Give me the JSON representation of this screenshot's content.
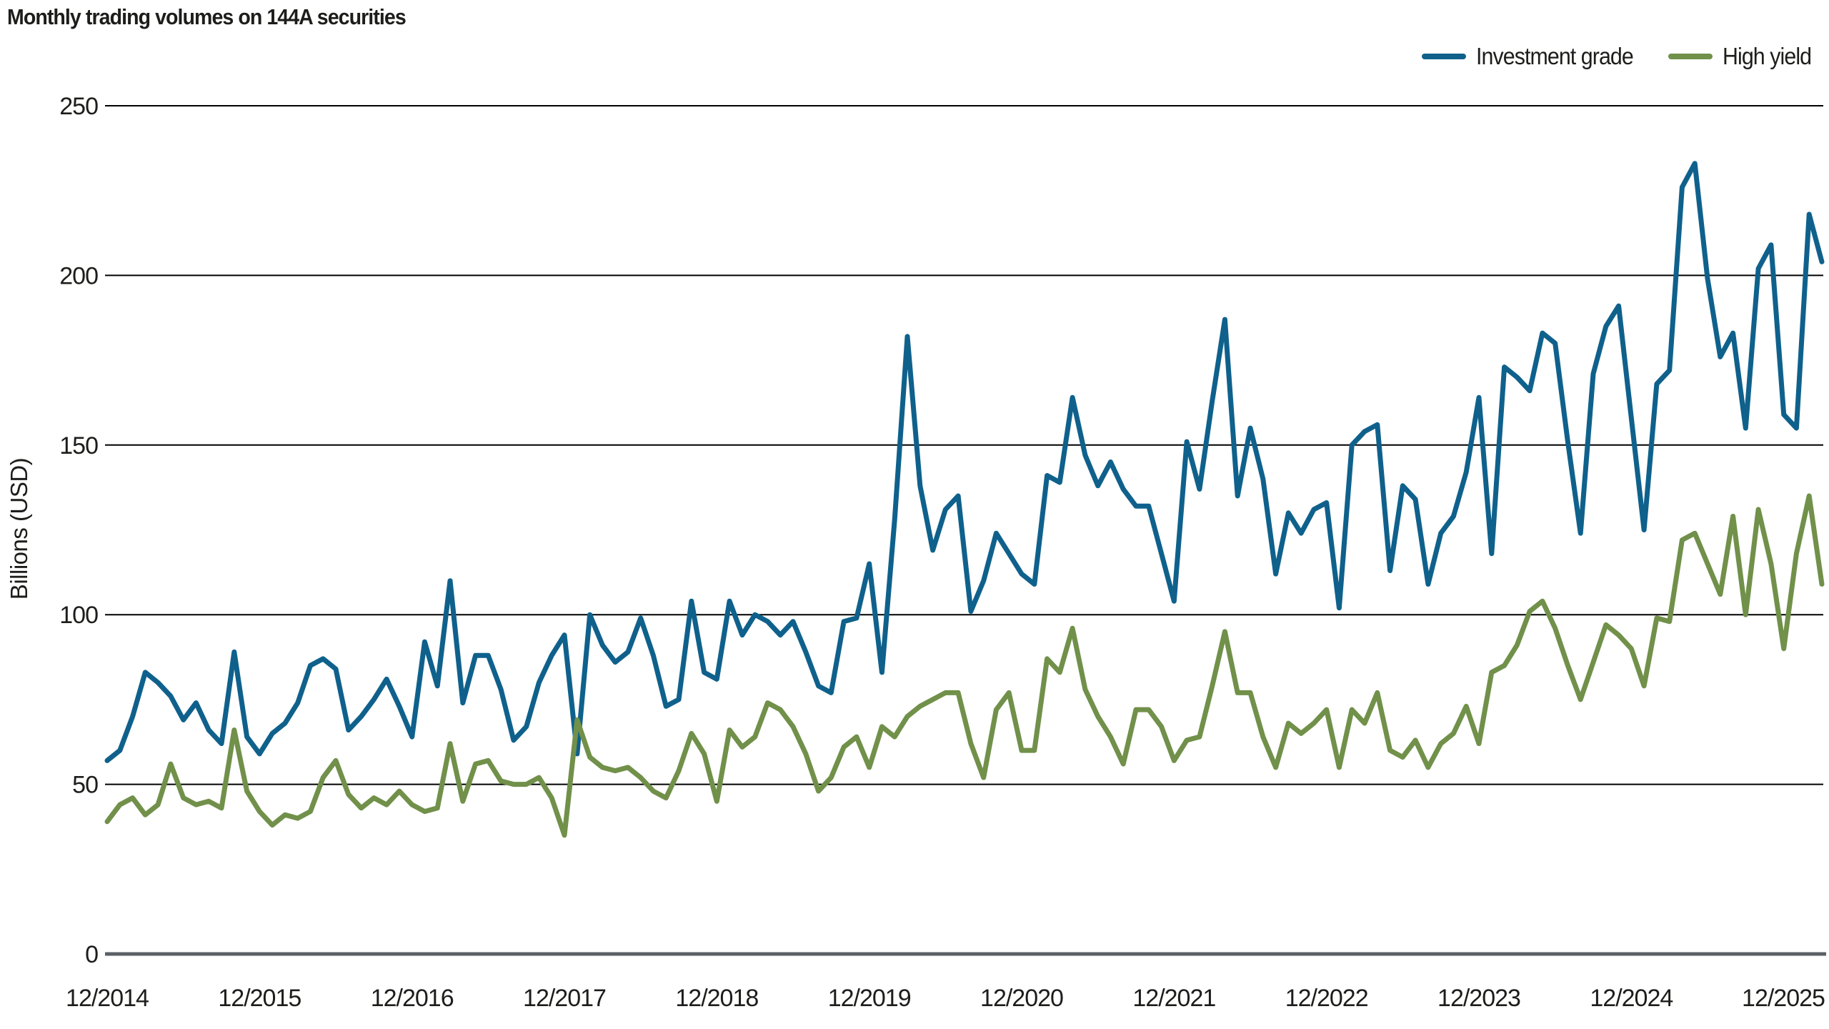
{
  "chart_data": {
    "type": "line",
    "title": "Monthly trading volumes on 144A securities",
    "xlabel": "",
    "ylabel": "Billions (USD)",
    "ylim": [
      0,
      250
    ],
    "y_ticks": [
      0,
      50,
      100,
      150,
      200,
      250
    ],
    "y_tick_labels": [
      "0",
      "50",
      "100",
      "150",
      "200",
      "250"
    ],
    "x_frequency": "monthly",
    "x_start_label": "12/2014",
    "x_tick_labels": [
      "12/2014",
      "12/2015",
      "12/2016",
      "12/2017",
      "12/2018",
      "12/2019",
      "12/2020",
      "12/2021",
      "12/2022",
      "12/2023",
      "12/2024",
      "12/2025"
    ],
    "x_tick_every_n_points": 12,
    "grid": "horizontal",
    "legend_position": "top-right",
    "series": [
      {
        "name": "Investment grade",
        "color": "#0f618c",
        "values": [
          57,
          60,
          70,
          83,
          80,
          76,
          69,
          74,
          66,
          62,
          89,
          64,
          59,
          65,
          68,
          74,
          85,
          87,
          84,
          66,
          70,
          75,
          81,
          73,
          64,
          92,
          79,
          110,
          74,
          88,
          88,
          78,
          63,
          67,
          80,
          88,
          94,
          59,
          100,
          91,
          86,
          89,
          99,
          88,
          73,
          75,
          104,
          83,
          81,
          104,
          94,
          100,
          98,
          94,
          98,
          89,
          79,
          77,
          98,
          99,
          115,
          83,
          128,
          182,
          138,
          119,
          131,
          135,
          101,
          110,
          124,
          118,
          112,
          109,
          141,
          139,
          164,
          147,
          138,
          145,
          137,
          132,
          132,
          118,
          104,
          151,
          137,
          163,
          187,
          135,
          155,
          140,
          112,
          130,
          124,
          131,
          133,
          102,
          150,
          154,
          156,
          113,
          138,
          134,
          109,
          124,
          129,
          142,
          164,
          118,
          173,
          170,
          166,
          183,
          180,
          151,
          124,
          171,
          185,
          191,
          158,
          125,
          168,
          172,
          226,
          233,
          199,
          176,
          183,
          155,
          202,
          209,
          159,
          155,
          218,
          204
        ]
      },
      {
        "name": "High yield",
        "color": "#71904a",
        "values": [
          39,
          44,
          46,
          41,
          44,
          56,
          46,
          44,
          45,
          43,
          66,
          48,
          42,
          38,
          41,
          40,
          42,
          52,
          57,
          47,
          43,
          46,
          44,
          48,
          44,
          42,
          43,
          62,
          45,
          56,
          57,
          51,
          50,
          50,
          52,
          46,
          35,
          69,
          58,
          55,
          54,
          55,
          52,
          48,
          46,
          54,
          65,
          59,
          45,
          66,
          61,
          64,
          74,
          72,
          67,
          59,
          48,
          52,
          61,
          64,
          55,
          67,
          64,
          70,
          73,
          75,
          77,
          77,
          62,
          52,
          72,
          77,
          60,
          60,
          87,
          83,
          96,
          78,
          70,
          64,
          56,
          72,
          72,
          67,
          57,
          63,
          64,
          79,
          95,
          77,
          77,
          64,
          55,
          68,
          65,
          68,
          72,
          55,
          72,
          68,
          77,
          60,
          58,
          63,
          55,
          62,
          65,
          73,
          62,
          83,
          85,
          91,
          101,
          104,
          96,
          85,
          75,
          86,
          97,
          94,
          90,
          79,
          99,
          98,
          122,
          124,
          115,
          106,
          129,
          100,
          131,
          115,
          90,
          118,
          135,
          109
        ]
      }
    ]
  },
  "colors": {
    "background": "#ffffff",
    "text": "#1d1d1b",
    "gridline": "#000000",
    "zero_axis_line": "#5a6066"
  }
}
